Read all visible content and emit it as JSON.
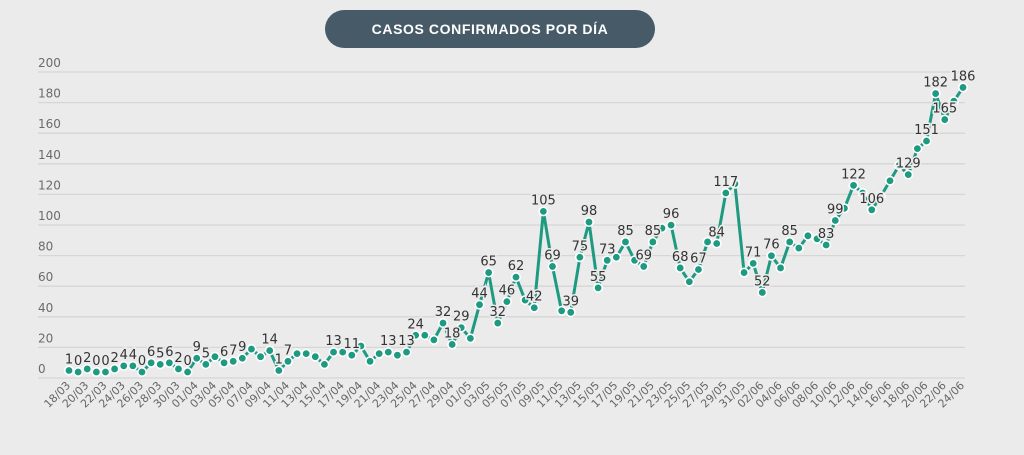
{
  "title": "CASOS CONFIRMADOS POR DÍA",
  "colors": {
    "line": "#1e9a82",
    "title_bg": "#475a68",
    "background": "#ebebeb"
  },
  "chart_data": {
    "type": "line",
    "title": "CASOS CONFIRMADOS POR DÍA",
    "xlabel": "",
    "ylabel": "",
    "ylim": [
      0,
      200
    ],
    "yticks": [
      0,
      20,
      40,
      60,
      80,
      100,
      120,
      140,
      160,
      180,
      200
    ],
    "grid": true,
    "legend": "none",
    "x": [
      "18/03",
      "19/03",
      "20/03",
      "21/03",
      "22/03",
      "23/03",
      "24/03",
      "25/03",
      "26/03",
      "27/03",
      "28/03",
      "29/03",
      "30/03",
      "31/03",
      "01/04",
      "02/04",
      "03/04",
      "04/04",
      "05/04",
      "06/04",
      "07/04",
      "08/04",
      "09/04",
      "10/04",
      "11/04",
      "12/04",
      "13/04",
      "14/04",
      "15/04",
      "16/04",
      "17/04",
      "18/04",
      "19/04",
      "20/04",
      "21/04",
      "22/04",
      "23/04",
      "24/04",
      "25/04",
      "26/04",
      "27/04",
      "28/04",
      "29/04",
      "30/04",
      "01/05",
      "02/05",
      "03/05",
      "04/05",
      "05/05",
      "06/05",
      "07/05",
      "08/05",
      "09/05",
      "10/05",
      "11/05",
      "12/05",
      "13/05",
      "14/05",
      "15/05",
      "16/05",
      "17/05",
      "18/05",
      "19/05",
      "20/05",
      "21/05",
      "22/05",
      "23/05",
      "24/05",
      "25/05",
      "26/05",
      "27/05",
      "28/05",
      "29/05",
      "30/05",
      "31/05",
      "01/06",
      "02/06",
      "03/06",
      "04/06",
      "05/06",
      "06/06",
      "07/06",
      "08/06",
      "09/06",
      "10/06",
      "11/06",
      "12/06",
      "13/06",
      "14/06",
      "15/06",
      "16/06",
      "17/06",
      "18/06",
      "19/06",
      "20/06",
      "21/06",
      "22/06",
      "23/06",
      "24/06"
    ],
    "xtick_labels": [
      "18/03",
      "20/03",
      "22/03",
      "24/03",
      "26/03",
      "28/03",
      "30/03",
      "01/04",
      "03/04",
      "05/04",
      "07/04",
      "09/04",
      "11/04",
      "13/04",
      "15/04",
      "17/04",
      "19/04",
      "21/04",
      "23/04",
      "25/04",
      "27/04",
      "29/04",
      "01/05",
      "03/05",
      "05/05",
      "07/05",
      "09/05",
      "11/05",
      "13/05",
      "15/05",
      "17/05",
      "19/05",
      "21/05",
      "23/05",
      "25/05",
      "27/05",
      "29/05",
      "31/05",
      "02/06",
      "04/06",
      "06/06",
      "08/06",
      "10/06",
      "12/06",
      "14/06",
      "16/06",
      "18/06",
      "20/06",
      "22/06",
      "24/06"
    ],
    "series": [
      {
        "name": "Casos confirmados",
        "values": [
          1,
          0,
          2,
          0,
          0,
          2,
          4,
          4,
          0,
          6,
          5,
          6,
          2,
          0,
          9,
          5,
          10,
          6,
          7,
          9,
          15,
          10,
          14,
          1,
          7,
          12,
          12,
          10,
          5,
          13,
          13,
          11,
          17,
          7,
          12,
          13,
          11,
          13,
          24,
          24,
          21,
          32,
          18,
          29,
          22,
          44,
          65,
          32,
          46,
          62,
          47,
          42,
          105,
          69,
          40,
          39,
          75,
          98,
          55,
          73,
          75,
          85,
          73,
          69,
          85,
          94,
          96,
          68,
          59,
          67,
          85,
          84,
          117,
          123,
          65,
          71,
          52,
          76,
          68,
          85,
          81,
          89,
          87,
          83,
          99,
          107,
          122,
          117,
          106,
          115,
          125,
          135,
          129,
          146,
          151,
          182,
          165,
          177,
          186
        ]
      }
    ],
    "data_labels": [
      {
        "x": "18/03",
        "text": "1"
      },
      {
        "x": "19/03",
        "text": "0"
      },
      {
        "x": "20/03",
        "text": "2"
      },
      {
        "x": "21/03",
        "text": "0"
      },
      {
        "x": "22/03",
        "text": "0"
      },
      {
        "x": "23/03",
        "text": "2"
      },
      {
        "x": "24/03",
        "text": "4"
      },
      {
        "x": "25/03",
        "text": "4"
      },
      {
        "x": "26/03",
        "text": "0"
      },
      {
        "x": "27/03",
        "text": "6"
      },
      {
        "x": "28/03",
        "text": "5"
      },
      {
        "x": "29/03",
        "text": "6"
      },
      {
        "x": "30/03",
        "text": "2"
      },
      {
        "x": "31/03",
        "text": "0"
      },
      {
        "x": "01/04",
        "text": "9"
      },
      {
        "x": "02/04",
        "text": "5"
      },
      {
        "x": "04/04",
        "text": "6"
      },
      {
        "x": "05/04",
        "text": "7"
      },
      {
        "x": "06/04",
        "text": "9"
      },
      {
        "x": "09/04",
        "text": "14"
      },
      {
        "x": "10/04",
        "text": "1"
      },
      {
        "x": "11/04",
        "text": "7"
      },
      {
        "x": "16/04",
        "text": "13"
      },
      {
        "x": "18/04",
        "text": "11"
      },
      {
        "x": "22/04",
        "text": "13"
      },
      {
        "x": "24/04",
        "text": "13"
      },
      {
        "x": "25/04",
        "text": "24"
      },
      {
        "x": "28/04",
        "text": "32"
      },
      {
        "x": "29/04",
        "text": "18"
      },
      {
        "x": "30/04",
        "text": "29"
      },
      {
        "x": "02/05",
        "text": "44"
      },
      {
        "x": "03/05",
        "text": "65"
      },
      {
        "x": "04/05",
        "text": "32"
      },
      {
        "x": "05/05",
        "text": "46"
      },
      {
        "x": "06/05",
        "text": "62"
      },
      {
        "x": "08/05",
        "text": "42"
      },
      {
        "x": "09/05",
        "text": "105"
      },
      {
        "x": "10/05",
        "text": "69"
      },
      {
        "x": "12/05",
        "text": "39"
      },
      {
        "x": "13/05",
        "text": "75"
      },
      {
        "x": "14/05",
        "text": "98"
      },
      {
        "x": "15/05",
        "text": "55"
      },
      {
        "x": "16/05",
        "text": "73"
      },
      {
        "x": "18/05",
        "text": "85"
      },
      {
        "x": "20/05",
        "text": "69"
      },
      {
        "x": "21/05",
        "text": "85"
      },
      {
        "x": "23/05",
        "text": "96"
      },
      {
        "x": "24/05",
        "text": "68"
      },
      {
        "x": "26/05",
        "text": "67"
      },
      {
        "x": "28/05",
        "text": "84"
      },
      {
        "x": "29/05",
        "text": "117"
      },
      {
        "x": "01/06",
        "text": "71"
      },
      {
        "x": "02/06",
        "text": "52"
      },
      {
        "x": "03/06",
        "text": "76"
      },
      {
        "x": "05/06",
        "text": "85"
      },
      {
        "x": "09/06",
        "text": "83"
      },
      {
        "x": "10/06",
        "text": "99"
      },
      {
        "x": "12/06",
        "text": "122"
      },
      {
        "x": "14/06",
        "text": "106"
      },
      {
        "x": "18/06",
        "text": "129"
      },
      {
        "x": "20/06",
        "text": "151"
      },
      {
        "x": "21/06",
        "text": "182"
      },
      {
        "x": "22/06",
        "text": "165"
      },
      {
        "x": "24/06",
        "text": "186"
      }
    ]
  }
}
